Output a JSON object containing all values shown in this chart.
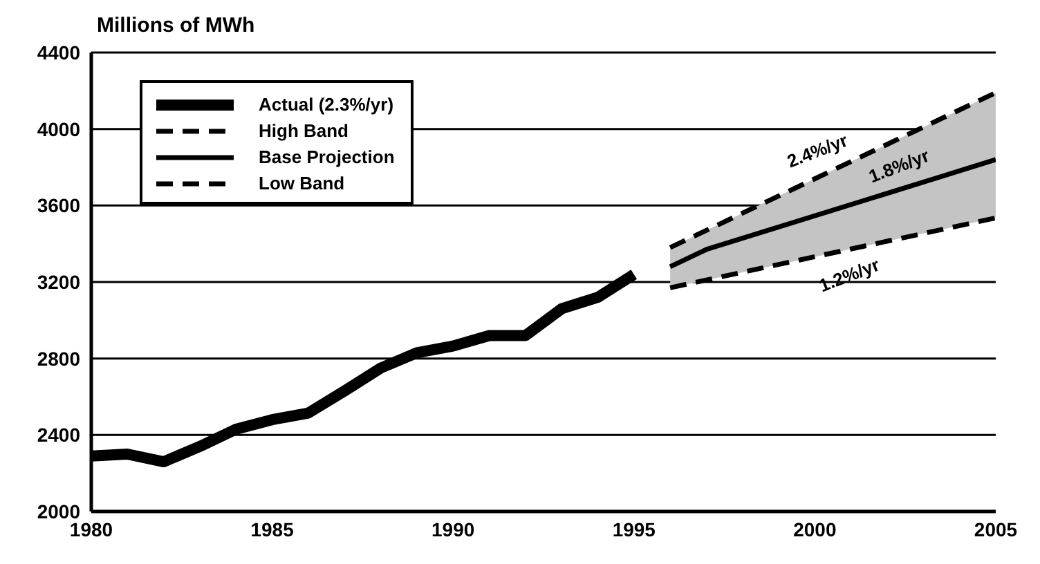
{
  "chart_data": {
    "type": "line",
    "ylabel": "Millions of MWh",
    "xlim": [
      1980,
      2005
    ],
    "xticks": [
      1980,
      1985,
      1990,
      1995,
      2000,
      2005
    ],
    "ylim": [
      2000,
      4400
    ],
    "yticks": [
      2000,
      2400,
      2800,
      3200,
      3600,
      4000,
      4400
    ],
    "grid": "y",
    "legend": "top left",
    "marker": "none",
    "series": [
      {
        "name": "Actual (2.3%/yr)",
        "color": "#000000",
        "line_style": "solid",
        "x": [
          1980,
          1981,
          1982,
          1983,
          1984,
          1985,
          1986,
          1987,
          1988,
          1989,
          1990,
          1991,
          1992,
          1993,
          1994,
          1995
        ],
        "values": [
          2290,
          2300,
          2260,
          2340,
          2430,
          2480,
          2515,
          2630,
          2750,
          2830,
          2865,
          2920,
          2920,
          3060,
          3120,
          3240
        ]
      },
      {
        "name": "High Band",
        "color": "#000000",
        "line_style": "dashed",
        "x": [
          1996,
          2005
        ],
        "values": [
          3380,
          4190
        ]
      },
      {
        "name": "Base Projection",
        "color": "#000000",
        "line_style": "solid",
        "x": [
          1996,
          1997,
          2005
        ],
        "values": [
          3280,
          3370,
          3840
        ],
        "lower": [
          3170,
          3210,
          3535
        ],
        "upper": [
          3380,
          3470,
          4190
        ]
      },
      {
        "name": "Low Band",
        "color": "#000000",
        "line_style": "dashed",
        "x": [
          1996,
          2005
        ],
        "values": [
          3170,
          3535
        ]
      }
    ],
    "annotations": [
      "2.4%/yr",
      "1.8%/yr",
      "1.2%/yr"
    ]
  }
}
